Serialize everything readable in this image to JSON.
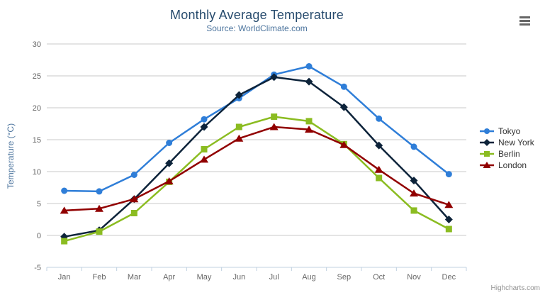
{
  "chart_data": {
    "type": "line",
    "title": "Monthly Average Temperature",
    "subtitle": "Source: WorldClimate.com",
    "xlabel": "",
    "ylabel": "Temperature (°C)",
    "categories": [
      "Jan",
      "Feb",
      "Mar",
      "Apr",
      "May",
      "Jun",
      "Jul",
      "Aug",
      "Sep",
      "Oct",
      "Nov",
      "Dec"
    ],
    "ylim": [
      -5,
      30
    ],
    "ytick_step": 5,
    "grid": true,
    "legend_position": "right",
    "series": [
      {
        "name": "Tokyo",
        "color": "#2f7ed8",
        "marker": "circle",
        "values": [
          7.0,
          6.9,
          9.5,
          14.5,
          18.2,
          21.5,
          25.2,
          26.5,
          23.3,
          18.3,
          13.9,
          9.6
        ]
      },
      {
        "name": "New York",
        "color": "#0d233a",
        "marker": "diamond",
        "values": [
          -0.2,
          0.8,
          5.7,
          11.3,
          17.0,
          22.0,
          24.8,
          24.1,
          20.1,
          14.1,
          8.6,
          2.5
        ]
      },
      {
        "name": "Berlin",
        "color": "#8bbc21",
        "marker": "square",
        "values": [
          -0.9,
          0.6,
          3.5,
          8.4,
          13.5,
          17.0,
          18.6,
          17.9,
          14.3,
          9.0,
          3.9,
          1.0
        ]
      },
      {
        "name": "London",
        "color": "#910000",
        "marker": "triangle",
        "values": [
          3.9,
          4.2,
          5.7,
          8.5,
          11.9,
          15.2,
          17.0,
          16.6,
          14.2,
          10.3,
          6.6,
          4.8
        ]
      }
    ]
  },
  "credits": "Highcharts.com",
  "colors": {
    "title": "#274b6d",
    "subtitle": "#4d759e",
    "axis_label": "#666666",
    "axis_title": "#4d759e",
    "gridline": "#c8c8c8",
    "axis_line": "#c0d0e0",
    "credits": "#909090",
    "menu_icon": "#666666"
  }
}
